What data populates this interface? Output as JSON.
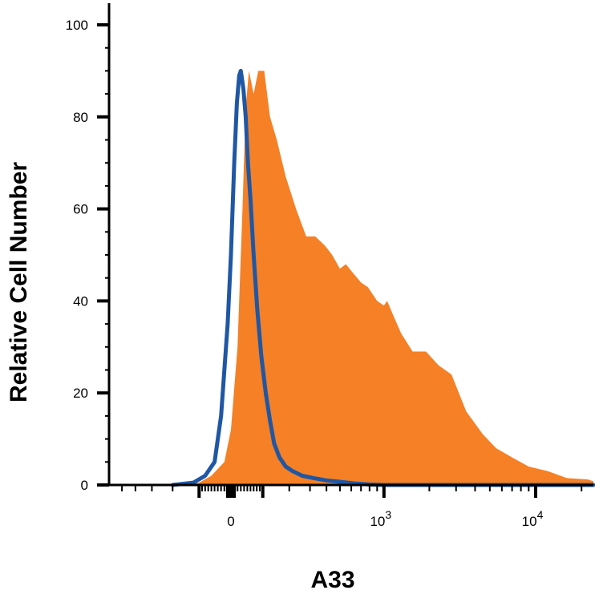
{
  "chart_data": {
    "type": "area",
    "xlabel": "A33",
    "ylabel": "Relative Cell Number",
    "ylim": [
      0,
      100
    ],
    "y_ticks": [
      "0",
      "20",
      "40",
      "60",
      "80",
      "100"
    ],
    "x_scale": "biexponential",
    "x_tick_labels": [
      {
        "base": "0",
        "exp": ""
      },
      {
        "base": "10",
        "exp": "3"
      },
      {
        "base": "10",
        "exp": "4"
      }
    ],
    "grid": false,
    "legend": "none",
    "series": [
      {
        "style": "filled",
        "color": "#F58025",
        "points": [
          [
            -150,
            0
          ],
          [
            -100,
            0.5
          ],
          [
            -60,
            2
          ],
          [
            -20,
            5
          ],
          [
            0,
            12
          ],
          [
            20,
            30
          ],
          [
            35,
            60
          ],
          [
            45,
            82
          ],
          [
            55,
            90
          ],
          [
            70,
            85
          ],
          [
            85,
            90
          ],
          [
            105,
            90
          ],
          [
            125,
            80
          ],
          [
            150,
            75
          ],
          [
            185,
            67
          ],
          [
            230,
            60
          ],
          [
            280,
            54
          ],
          [
            330,
            54
          ],
          [
            390,
            52
          ],
          [
            440,
            50
          ],
          [
            500,
            47
          ],
          [
            550,
            48
          ],
          [
            620,
            46
          ],
          [
            700,
            44
          ],
          [
            780,
            43
          ],
          [
            900,
            40
          ],
          [
            1000,
            39
          ],
          [
            1050,
            40
          ],
          [
            1150,
            37
          ],
          [
            1300,
            33
          ],
          [
            1550,
            29
          ],
          [
            1900,
            29
          ],
          [
            2300,
            26
          ],
          [
            2800,
            24
          ],
          [
            3500,
            16
          ],
          [
            4500,
            11
          ],
          [
            5500,
            8
          ],
          [
            7000,
            6
          ],
          [
            9000,
            4
          ],
          [
            12000,
            3
          ],
          [
            16000,
            1.5
          ],
          [
            22000,
            1.2
          ],
          [
            30000,
            0.8
          ],
          [
            40000,
            0.3
          ],
          [
            50000,
            0
          ]
        ]
      },
      {
        "style": "line",
        "color": "#1F57A4",
        "points": [
          [
            -200,
            0
          ],
          [
            -120,
            0.5
          ],
          [
            -80,
            2
          ],
          [
            -50,
            5
          ],
          [
            -30,
            15
          ],
          [
            -10,
            35
          ],
          [
            0,
            50
          ],
          [
            10,
            70
          ],
          [
            18,
            83
          ],
          [
            25,
            89
          ],
          [
            30,
            90
          ],
          [
            38,
            86
          ],
          [
            45,
            80
          ],
          [
            52,
            70
          ],
          [
            60,
            62
          ],
          [
            70,
            50
          ],
          [
            82,
            38
          ],
          [
            95,
            28
          ],
          [
            110,
            20
          ],
          [
            125,
            14
          ],
          [
            140,
            9
          ],
          [
            160,
            6
          ],
          [
            185,
            4
          ],
          [
            215,
            3
          ],
          [
            260,
            2
          ],
          [
            320,
            1.5
          ],
          [
            400,
            1
          ],
          [
            500,
            0.7
          ],
          [
            650,
            0.3
          ],
          [
            800,
            0.1
          ],
          [
            1000,
            0
          ],
          [
            50000,
            0
          ]
        ]
      }
    ]
  }
}
